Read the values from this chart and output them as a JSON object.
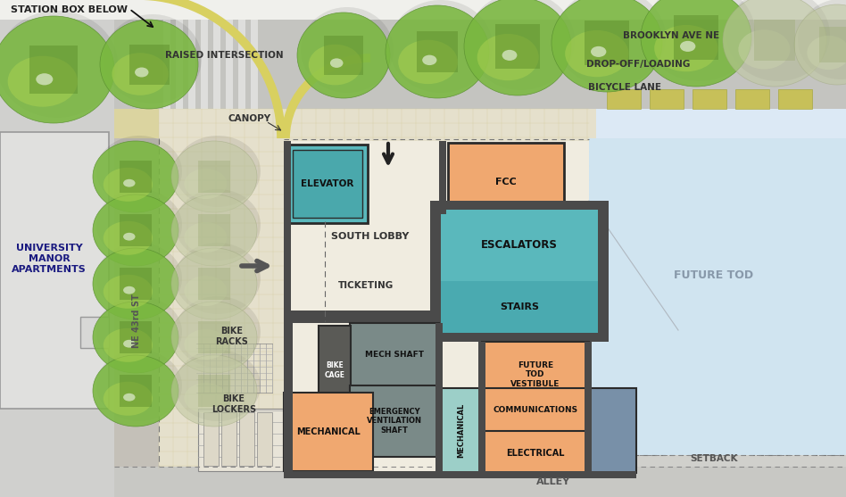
{
  "bg_color": "#dce9f5",
  "white_bg": "#f5f2e8",
  "street_color": "#c2c2c2",
  "sidewalk_color": "#e5e0cc",
  "road_tan": "#d8d0a8",
  "lobby_floor": "#f0ece0",
  "orange_room": "#f0a870",
  "teal_room": "#5ab8bc",
  "teal_stairs": "#4aaab0",
  "blue_room": "#7890a8",
  "mint_room": "#9ccfc8",
  "dark_wall": "#4a4a4a",
  "gray_wall": "#888888",
  "univ_gray": "#d8d8d8",
  "future_blue": "#d0e4f0",
  "bike_lane_yellow": "#c8c040",
  "canopy_yellow": "#e0d870",
  "top_bar": "#f0f0ec",
  "labels": {
    "station_box_below": "STATION BOX BELOW",
    "raised_intersection": "RAISED INTERSECTION",
    "canopy": "CANOPY",
    "brooklyn_ave": "BROOKLYN AVE NE",
    "drop_off": "DROP-OFF/LOADING",
    "bicycle_lane": "BICYCLE LANE",
    "elevator": "ELEVATOR",
    "fcc": "FCC",
    "escalators": "ESCALATORS",
    "stairs": "STAIRS",
    "south_lobby": "SOUTH LOBBY",
    "ticketing": "TICKETING",
    "future_tod_vestibule": "FUTURE\nTOD\nVESTIBULE",
    "future_tod": "FUTURE TOD",
    "mech_shaft": "MECH SHAFT",
    "bike_cage": "BIKE\nCAGE",
    "emergency_vent": "EMERGENCY\nVENTILATION\nSHAFT",
    "communications": "COMMUNICATIONS",
    "electrical": "ELECTRICAL",
    "mechanical1": "MECHANICAL",
    "mechanical2": "MECHANICAL",
    "bike_racks": "BIKE\nRACKS",
    "bike_lockers": "BIKE\nLOCKERS",
    "ne_43rd": "NE 43rd ST",
    "university_manor": "UNIVERSITY\nMANOR\nAPARTMENTS",
    "setback": "SETBACK",
    "alley": "ALLEY"
  }
}
